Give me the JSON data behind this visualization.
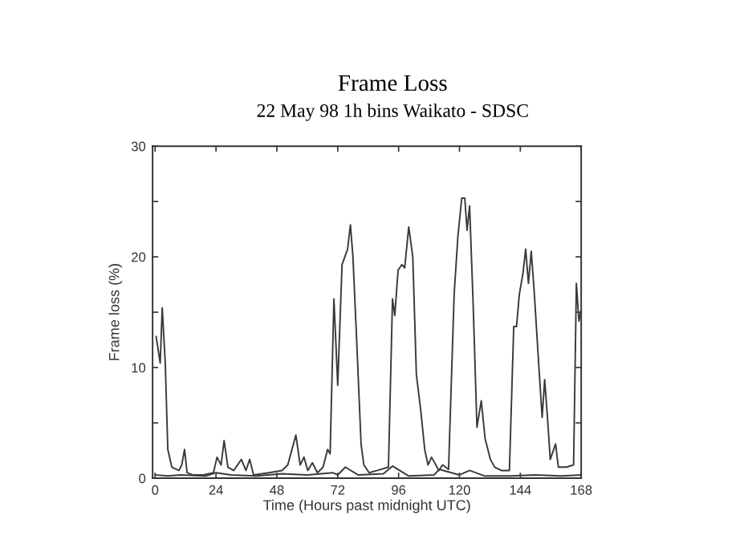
{
  "chart_data": {
    "type": "line",
    "title": "Frame Loss",
    "subtitle": "22 May 98 1h bins Waikato - SDSC",
    "xlabel": "Time (Hours past midnight UTC)",
    "ylabel": "Frame loss (%)",
    "xlim": [
      -1,
      168
    ],
    "ylim": [
      0,
      30
    ],
    "xticks": [
      0,
      24,
      48,
      72,
      96,
      120,
      144,
      168
    ],
    "yticks": [
      0,
      {
        "value": 5,
        "label": null
      },
      10,
      {
        "value": 15,
        "label": null
      },
      20,
      {
        "value": 25,
        "label": null
      },
      30
    ],
    "grid": false,
    "legend": false,
    "marker": "none",
    "line_style": "solid",
    "series": [
      {
        "color": "#3a3a3a",
        "x": [
          0.4,
          2,
          2.8,
          4,
          5,
          6.6,
          9.4,
          10.5,
          11.6,
          12.6,
          14.8,
          19,
          23,
          24.4,
          26,
          27.2,
          28.7,
          31,
          34,
          35.8,
          37.3,
          38.8,
          44.8,
          50,
          52.3,
          55.5,
          57.2,
          58.7,
          60.2,
          62,
          64,
          66.2,
          68,
          69,
          70.5,
          72,
          73.7,
          74.8,
          75.9,
          77,
          78,
          79.5,
          81.2,
          82.3,
          84.4,
          87.6,
          92,
          93.6,
          94.5,
          95.8,
          97.3,
          98.4,
          100,
          101.6,
          103,
          104.8,
          106.3,
          107.6,
          109,
          111.9,
          113.3,
          115.7,
          117.9,
          119.4,
          120.9,
          122.1,
          123,
          124,
          125.4,
          126.9,
          128.6,
          130.1,
          132.2,
          133.9,
          136.5,
          139.7,
          141.4,
          142.5,
          143.6,
          145.1,
          146.1,
          147.2,
          148.3,
          149.4,
          151.5,
          152.6,
          153.6,
          154.7,
          155.8,
          157.9,
          159,
          162.2,
          165,
          166.1,
          167.1,
          168
        ],
        "values": [
          12.8,
          10.4,
          15.4,
          10.4,
          2.6,
          1,
          0.7,
          1.2,
          2.6,
          0.5,
          0.3,
          0.3,
          0.5,
          1.9,
          1.2,
          3.4,
          1,
          0.7,
          1.7,
          0.7,
          1.7,
          0.3,
          0.5,
          0.7,
          1.2,
          3.9,
          1.2,
          1.9,
          0.7,
          1.4,
          0.5,
          1,
          2.6,
          2.2,
          16.2,
          8.4,
          19.3,
          20,
          20.7,
          22.9,
          20,
          12.3,
          3.1,
          1.2,
          0.5,
          0.7,
          1,
          16.2,
          14.7,
          18.8,
          19.3,
          19,
          22.7,
          20,
          9.4,
          6,
          2.6,
          1.2,
          1.9,
          0.7,
          1.2,
          0.8,
          16.6,
          21.9,
          25.3,
          25.3,
          22.4,
          24.6,
          15.7,
          4.6,
          7,
          3.6,
          1.7,
          1,
          0.7,
          0.7,
          13.7,
          13.7,
          16.6,
          18.6,
          20.7,
          17.6,
          20.5,
          17.1,
          9.4,
          5.5,
          8.9,
          5.5,
          1.7,
          3.1,
          1,
          1,
          1.2,
          17.6,
          14.2,
          15.2
        ]
      },
      {
        "color": "#3a3a3a",
        "x": [
          0,
          5,
          10,
          20,
          24,
          30,
          40,
          50,
          60,
          70,
          72,
          75,
          80,
          90,
          93.6,
          100,
          110,
          112,
          120,
          124,
          130,
          140,
          150,
          160,
          168
        ],
        "values": [
          0.3,
          0.2,
          0.3,
          0.2,
          0.5,
          0.3,
          0.2,
          0.4,
          0.3,
          0.5,
          0.3,
          1,
          0.3,
          0.4,
          1.1,
          0.2,
          0.3,
          0.8,
          0.3,
          0.7,
          0.2,
          0.2,
          0.3,
          0.2,
          0.3
        ]
      }
    ]
  }
}
